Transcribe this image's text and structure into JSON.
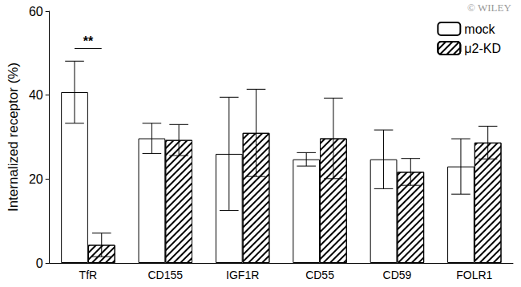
{
  "chart_data": {
    "type": "bar",
    "categories": [
      "TfR",
      "CD155",
      "IGF1R",
      "CD55",
      "CD59",
      "FOLR1"
    ],
    "series": [
      {
        "name": "mock",
        "color": "#ffffff",
        "values": [
          40.7,
          29.7,
          26.0,
          24.7,
          24.7,
          23.0
        ],
        "errors": [
          7.4,
          3.6,
          13.5,
          1.6,
          7.0,
          6.6
        ]
      },
      {
        "name": "μ2-KD",
        "color": "#ffffff",
        "values": [
          4.3,
          29.3,
          31.0,
          29.7,
          21.7,
          28.7
        ],
        "errors": [
          2.8,
          3.7,
          10.4,
          9.6,
          3.2,
          3.9
        ]
      }
    ],
    "y_label": "Internalized receptor (%)",
    "ylim": [
      0,
      60
    ],
    "yticks": [
      0,
      20,
      40,
      60
    ],
    "grid": false,
    "legend": "upper right",
    "annotations": [
      {
        "text": "**",
        "category": "TfR"
      },
      {
        "text": "© WILEY"
      }
    ]
  }
}
